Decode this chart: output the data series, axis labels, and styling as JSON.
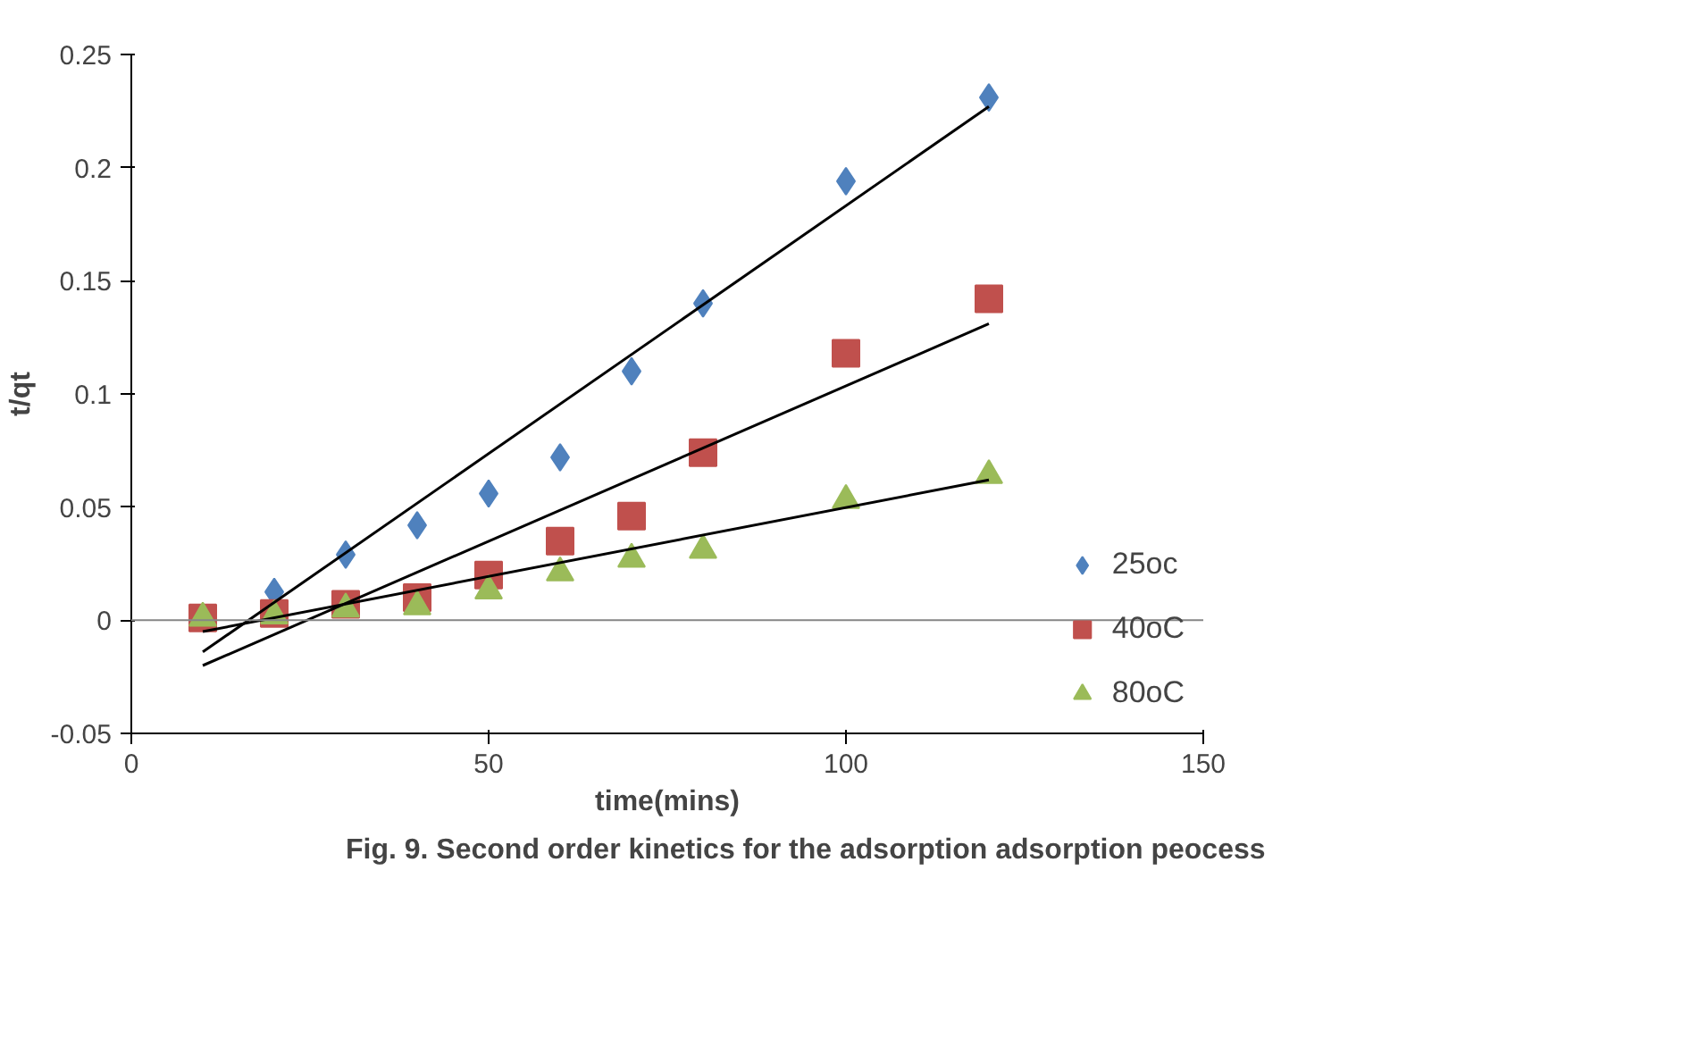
{
  "chart_data": {
    "type": "scatter",
    "title": "Fig. 9.  Second order kinetics for the adsorption adsorption peocess",
    "xlabel": "time(mins)",
    "ylabel": "t/qt",
    "xlim": [
      0,
      150
    ],
    "xticks": [
      0,
      50,
      100,
      150
    ],
    "ylim": [
      -0.05,
      0.25
    ],
    "yticks": [
      -0.05,
      0,
      0.05,
      0.1,
      0.15,
      0.2,
      0.25
    ],
    "grid": false,
    "legend": "right",
    "ref_lines": [
      {
        "axis": "y",
        "value": 0,
        "color": "#868686"
      }
    ],
    "series": [
      {
        "name": "25oc",
        "color": "#4f81bd",
        "marker": "diamond",
        "x": [
          20,
          30,
          40,
          50,
          60,
          70,
          80,
          100,
          120
        ],
        "values": [
          0.0125,
          0.029,
          0.042,
          0.056,
          0.072,
          0.11,
          0.14,
          0.194,
          0.231
        ]
      },
      {
        "name": "40oC",
        "color": "#c0504d",
        "marker": "square",
        "x": [
          10,
          20,
          30,
          40,
          50,
          60,
          70,
          80,
          100,
          120
        ],
        "values": [
          0.001,
          0.003,
          0.007,
          0.01,
          0.02,
          0.035,
          0.046,
          0.074,
          0.118,
          0.142
        ]
      },
      {
        "name": "80oC",
        "color": "#9bbb59",
        "marker": "triangle",
        "x": [
          10,
          20,
          30,
          40,
          50,
          60,
          70,
          80,
          100,
          120
        ],
        "values": [
          0.001,
          0.002,
          0.005,
          0.006,
          0.013,
          0.021,
          0.027,
          0.031,
          0.053,
          0.064
        ]
      },
      {
        "type": "line",
        "color": "#000000",
        "x": [
          10,
          120
        ],
        "values": [
          -0.014,
          0.227
        ]
      },
      {
        "type": "line",
        "color": "#000000",
        "x": [
          10,
          120
        ],
        "values": [
          -0.02,
          0.131
        ]
      },
      {
        "type": "line",
        "color": "#000000",
        "x": [
          10,
          120
        ],
        "values": [
          -0.005,
          0.062
        ]
      }
    ]
  }
}
